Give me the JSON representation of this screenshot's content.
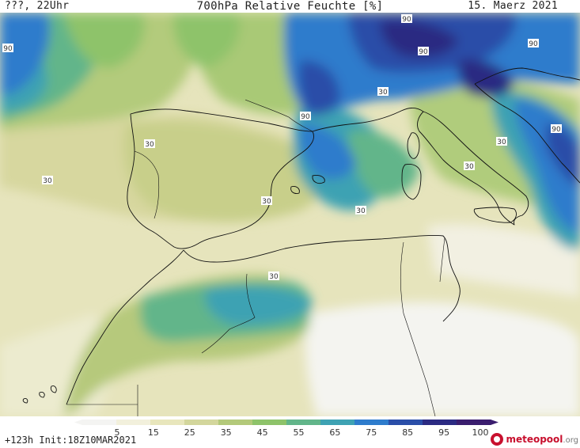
{
  "header": {
    "left": "???, 22Uhr",
    "title": "700hPa Relative Feuchte [%]",
    "date": "15. Maerz 2021"
  },
  "map": {
    "region": "Western Mediterranean",
    "contour_labels": [
      "90",
      "90",
      "90",
      "90",
      "90",
      "90",
      "30",
      "30",
      "30",
      "30",
      "30",
      "30",
      "30",
      "30"
    ]
  },
  "legend": {
    "ticks": [
      "5",
      "15",
      "25",
      "35",
      "45",
      "55",
      "65",
      "75",
      "85",
      "95",
      "100"
    ],
    "colors": [
      "#f4f4f2",
      "#f2f0dc",
      "#e8e6bc",
      "#d3d69c",
      "#b3c97a",
      "#8ec36a",
      "#62b58a",
      "#3ea2b3",
      "#2e7ccc",
      "#2a4ea8",
      "#2b2a82",
      "#3a1d6e"
    ]
  },
  "footer": {
    "run_info": "+123h  Init:18Z10MAR2021",
    "brand_part1": "meteo",
    "brand_part2": "pool",
    "brand_part3": ".org"
  }
}
